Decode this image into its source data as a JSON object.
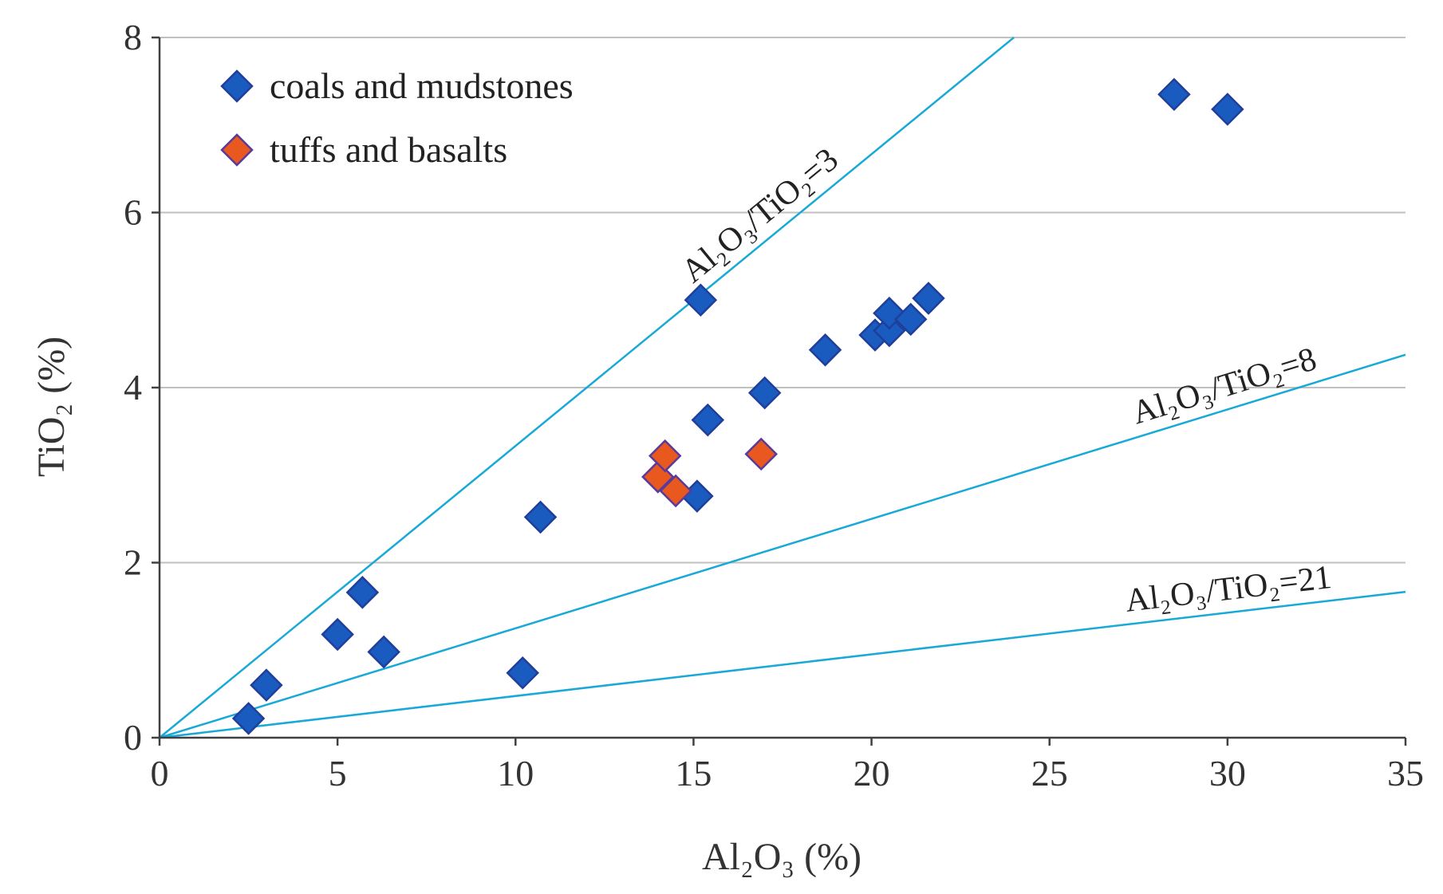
{
  "chart_data": {
    "type": "scatter",
    "title": "",
    "xlabel": "Al2O3 (%)",
    "ylabel": "TiO2 (%)",
    "xlim": [
      0,
      35
    ],
    "ylim": [
      0,
      8
    ],
    "x_ticks": [
      0,
      5,
      10,
      15,
      20,
      25,
      30,
      35
    ],
    "y_ticks": [
      0,
      2,
      4,
      6,
      8
    ],
    "grid": "horizontal",
    "legend_position": "top-left",
    "colors": {
      "grid": "#c0c0c0",
      "axis": "#404040",
      "ratio_line": "#19a9d6",
      "coals_fill": "#1a5bbf",
      "coals_stroke": "#1f3f9a",
      "tuffs_fill": "#e8581f",
      "tuffs_stroke": "#5a3a9a"
    },
    "series": [
      {
        "name": "coals and mudstones",
        "marker": "diamond",
        "points": [
          [
            2.5,
            0.22
          ],
          [
            3.0,
            0.6
          ],
          [
            5.0,
            1.18
          ],
          [
            5.7,
            1.66
          ],
          [
            6.3,
            0.98
          ],
          [
            10.2,
            0.74
          ],
          [
            10.7,
            2.52
          ],
          [
            15.1,
            2.76
          ],
          [
            15.2,
            5.0
          ],
          [
            15.4,
            3.63
          ],
          [
            17.0,
            3.94
          ],
          [
            18.7,
            4.43
          ],
          [
            20.1,
            4.6
          ],
          [
            20.5,
            4.65
          ],
          [
            20.5,
            4.85
          ],
          [
            21.1,
            4.78
          ],
          [
            21.6,
            5.02
          ],
          [
            28.5,
            7.35
          ],
          [
            30.0,
            7.18
          ]
        ]
      },
      {
        "name": "tuffs and basalts",
        "marker": "diamond",
        "points": [
          [
            14.0,
            2.98
          ],
          [
            14.2,
            3.22
          ],
          [
            14.5,
            2.82
          ],
          [
            16.9,
            3.24
          ]
        ]
      }
    ],
    "ratio_lines": [
      {
        "label": "Al₂O₃/TiO₂=3",
        "ratio": 3
      },
      {
        "label": "Al₂O₃/TiO₂=8",
        "ratio": 8
      },
      {
        "label": "Al₂O₃/TiO₂=21",
        "ratio": 21
      }
    ],
    "axis_titles": {
      "x": "Al₂O₃ (%)",
      "y": "TiO₂ (%)"
    }
  }
}
